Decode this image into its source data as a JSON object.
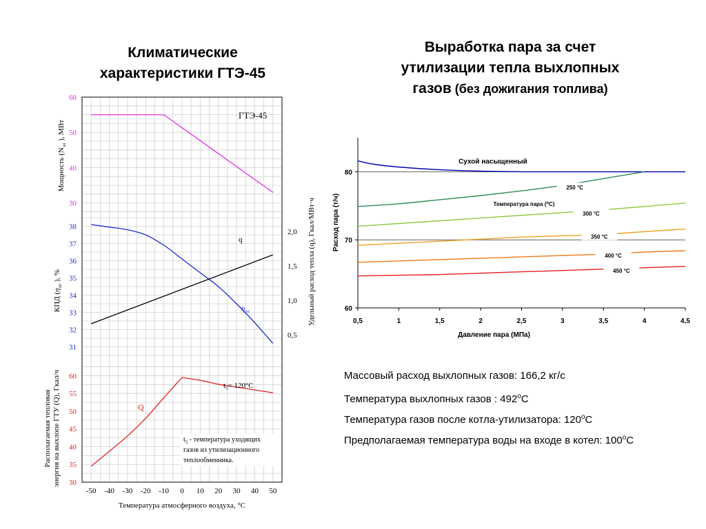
{
  "left": {
    "title_line1": "Климатические",
    "title_line2": "характеристики ГТЭ-45"
  },
  "right": {
    "title_line1": "Выработка пара за счет",
    "title_line2": "утилизации тепла выхлопных",
    "title_line3_main": "газов",
    "title_line3_paren": " (без дожигания топлива)"
  },
  "info": [
    {
      "text": "Массовый расход выхлопных газов:  166,2 кг/с"
    },
    {
      "text": "Температура выхлопных газов :  492",
      "sup": "o",
      "tail": "С"
    },
    {
      "text": "Температура газов после котла-утилизатора:  120",
      "sup": "o",
      "tail": "С"
    },
    {
      "text": "Предполагаемая температура воды на входе в котел:  100",
      "sup": "o",
      "tail": "С"
    }
  ],
  "colors": {
    "power": "#e62ee6",
    "efficiency": "#1a2ecc",
    "specific_heat": "#000000",
    "heat_Q": "#e62020",
    "steam_saturated": "#0000b4",
    "steam_250": "#2e8b57",
    "steam_300": "#8cc83c",
    "steam_350": "#f0a020",
    "steam_400": "#f07814",
    "steam_450": "#e61e1e"
  },
  "chart_data": [
    {
      "type": "line",
      "panel": "power",
      "chart_label": "ГТЭ-45",
      "xlabel": "Температура атмосферного воздуха, °С",
      "x_ticks": [
        "-50",
        "-40",
        "-30",
        "-20",
        "-10",
        "0",
        "10",
        "20",
        "30",
        "40",
        "50"
      ],
      "xlim": [
        -55,
        55
      ],
      "ylabel": "Мощность (N",
      "ylabel_sub": "эл",
      "ylabel_tail": " ), МВт",
      "ylim": [
        27,
        60
      ],
      "y_ticks": [
        "60",
        "50",
        "40",
        "30"
      ],
      "series": [
        {
          "x": [
            -50,
            -10,
            50
          ],
          "y": [
            55,
            55,
            33
          ]
        }
      ]
    },
    {
      "type": "line",
      "panel": "efficiency",
      "ylabel": "КПД (",
      "ylabel_eta": "η",
      "ylabel_sub": "эл",
      "ylabel_tail": " ), %",
      "ylim": [
        30.5,
        38.5
      ],
      "y_ticks": [
        "38",
        "37",
        "36",
        "35",
        "34",
        "33",
        "32",
        "31"
      ],
      "y2label": "Удельный расход тепла (q), Гкал/МВт·ч",
      "y2lim": [
        0.2,
        2.2
      ],
      "y2_ticks": [
        "2,0",
        "1,5",
        "1,0",
        "0,5"
      ],
      "series": [
        {
          "name": "η",
          "name_sub": "эл",
          "x": [
            -50,
            -40,
            -30,
            -20,
            -10,
            0,
            10,
            20,
            30,
            40,
            50
          ],
          "y": [
            38.1,
            37.95,
            37.8,
            37.5,
            36.9,
            36.1,
            35.3,
            34.5,
            33.5,
            32.4,
            31.2
          ]
        },
        {
          "name": "q",
          "axis": "y2",
          "x": [
            -50,
            50
          ],
          "y": [
            0.66,
            1.66
          ]
        }
      ]
    },
    {
      "type": "line",
      "panel": "heat",
      "ylabel_line1": "Располагаемая тепловая",
      "ylabel_line2": "энергия на выхлопе ГТУ (Q), Гкал/ч",
      "ylim": [
        30,
        63
      ],
      "y_ticks": [
        "60",
        "55",
        "50",
        "45",
        "40",
        "35",
        "30"
      ],
      "series": [
        {
          "name": "Q",
          "x": [
            -50,
            -40,
            -30,
            -20,
            -10,
            0,
            10,
            20,
            30,
            40,
            50
          ],
          "y": [
            34.5,
            38.7,
            43.0,
            48.0,
            53.8,
            59.5,
            58.7,
            57.6,
            56.8,
            56.0,
            55.2
          ]
        }
      ],
      "annotation_t5_label": "t",
      "annotation_t5_sub": "5",
      "annotation_t5_value": "= 120°С",
      "note_t": "t",
      "note_sub": "5",
      "note_line1": " - температура уходящих",
      "note_line2": "газов из утилизационного",
      "note_line3": "теплообменника."
    },
    {
      "type": "line",
      "panel": "steam",
      "xlabel": "Давление пара (МПа)",
      "ylabel": "Расход пара (т/ч)",
      "xlim": [
        0.5,
        4.5
      ],
      "ylim": [
        60,
        85
      ],
      "x_ticks": [
        "0,5",
        "1",
        "1,5",
        "2",
        "2,5",
        "3",
        "3,5",
        "4",
        "4,5"
      ],
      "y_ticks": [
        "80",
        "70",
        "60"
      ],
      "legend_title_pre": "Температура пара (",
      "legend_title_sup": "о",
      "legend_title_post": "С)",
      "series": [
        {
          "name": "Сухой насыщенный",
          "x": [
            0.5,
            0.7,
            1.0,
            1.5,
            2.0,
            2.5,
            3.0,
            3.5,
            4.0,
            4.5
          ],
          "y": [
            81.6,
            81.1,
            80.7,
            80.3,
            80.1,
            80.0,
            80.0,
            80.0,
            80.0,
            80.0
          ]
        },
        {
          "name": "250 °С",
          "x": [
            0.5,
            1.0,
            1.5,
            2.0,
            2.5,
            3.0,
            3.5,
            4.0
          ],
          "y": [
            74.9,
            75.3,
            75.9,
            76.5,
            77.2,
            78.0,
            79.0,
            80.0
          ]
        },
        {
          "name": "300 °С",
          "x": [
            0.5,
            1.0,
            1.5,
            2.0,
            2.5,
            3.0,
            3.5,
            4.0,
            4.5
          ],
          "y": [
            72.0,
            72.4,
            72.8,
            73.2,
            73.6,
            74.0,
            74.4,
            74.9,
            75.4
          ]
        },
        {
          "name": "350 °С",
          "x": [
            0.5,
            1.0,
            1.5,
            2.0,
            2.5,
            3.0,
            3.5,
            4.0,
            4.5
          ],
          "y": [
            69.2,
            69.5,
            69.8,
            70.1,
            70.4,
            70.6,
            70.8,
            71.2,
            71.6
          ]
        },
        {
          "name": "400 °С",
          "x": [
            0.5,
            1.0,
            1.5,
            2.0,
            2.5,
            3.0,
            3.5,
            4.0,
            4.5
          ],
          "y": [
            66.7,
            66.9,
            67.1,
            67.3,
            67.5,
            67.7,
            67.9,
            68.2,
            68.4
          ]
        },
        {
          "name": "450 °С",
          "x": [
            0.5,
            1.0,
            1.5,
            2.0,
            2.5,
            3.0,
            3.5,
            4.0,
            4.5
          ],
          "y": [
            64.7,
            64.8,
            64.9,
            65.1,
            65.3,
            65.5,
            65.7,
            65.9,
            66.1
          ]
        }
      ]
    }
  ]
}
